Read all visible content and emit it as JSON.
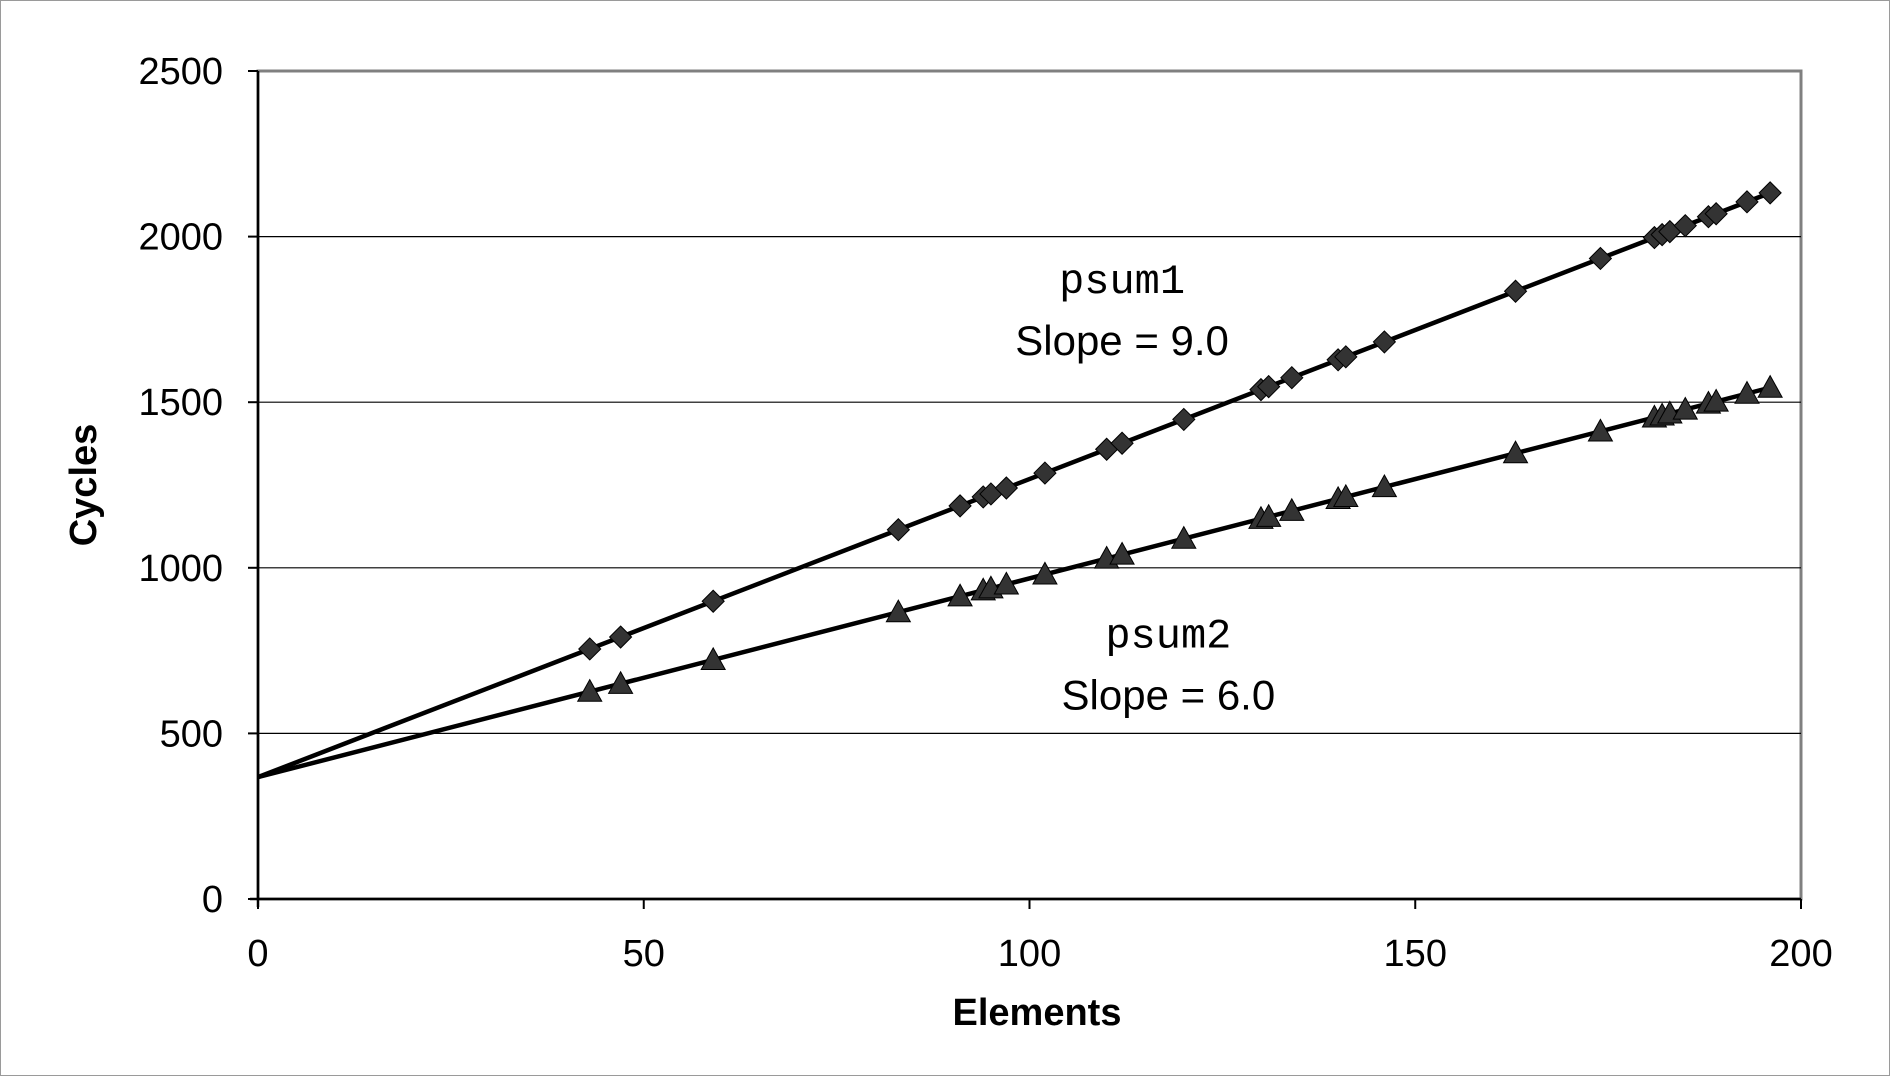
{
  "chart_data": {
    "type": "scatter",
    "xlabel": "Elements",
    "ylabel": "Cycles",
    "xlim": [
      0,
      200
    ],
    "ylim": [
      0,
      2500
    ],
    "xticks": [
      0,
      50,
      100,
      150,
      200
    ],
    "yticks": [
      0,
      500,
      1000,
      1500,
      2000,
      2500
    ],
    "grid": "horizontal",
    "legend": "none",
    "series": [
      {
        "marker": "diamond",
        "color": "#333333",
        "fit": {
          "slope": 9.0,
          "intercept": 368
        },
        "x": [
          43,
          47,
          59,
          83,
          91,
          94,
          95,
          97,
          102,
          110,
          112,
          120,
          130,
          131,
          134,
          140,
          141,
          146,
          163,
          174,
          181,
          182,
          183,
          185,
          188,
          189,
          193,
          196
        ],
        "y": [
          755,
          791,
          899,
          1115,
          1187,
          1214,
          1223,
          1241,
          1286,
          1358,
          1376,
          1448,
          1538,
          1547,
          1574,
          1628,
          1637,
          1682,
          1835,
          1934,
          1997,
          2006,
          2015,
          2033,
          2060,
          2069,
          2105,
          2132
        ]
      },
      {
        "marker": "triangle",
        "color": "#333333",
        "fit": {
          "slope": 6.0,
          "intercept": 368
        },
        "x": [
          43,
          47,
          59,
          83,
          91,
          94,
          95,
          97,
          102,
          110,
          112,
          120,
          130,
          131,
          134,
          140,
          141,
          146,
          163,
          174,
          181,
          182,
          183,
          185,
          188,
          189,
          193,
          196
        ],
        "y": [
          626,
          650,
          722,
          866,
          914,
          932,
          938,
          950,
          980,
          1028,
          1040,
          1088,
          1148,
          1154,
          1172,
          1208,
          1214,
          1244,
          1346,
          1412,
          1454,
          1460,
          1466,
          1478,
          1496,
          1502,
          1526,
          1544
        ]
      }
    ],
    "annotations": [
      {
        "name": "psum1",
        "slope_text": "Slope = 9.0",
        "x": 112,
        "y": 1830
      },
      {
        "name": "psum2",
        "slope_text": "Slope = 6.0",
        "x": 118,
        "y": 760
      }
    ]
  }
}
